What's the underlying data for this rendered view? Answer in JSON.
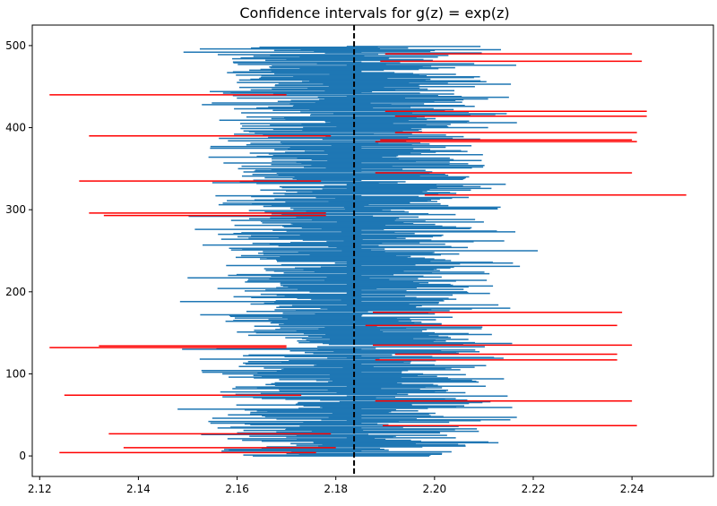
{
  "chart_data": {
    "type": "interval-plot",
    "title": "Confidence intervals for g(z) = exp(z)",
    "xlabel": "",
    "ylabel": "",
    "xlim": [
      2.1185,
      2.2565
    ],
    "ylim": [
      -25,
      525
    ],
    "xticks": [
      2.12,
      2.14,
      2.16,
      2.18,
      2.2,
      2.22,
      2.24
    ],
    "xtick_labels": [
      "2.12",
      "2.14",
      "2.16",
      "2.18",
      "2.20",
      "2.22",
      "2.24"
    ],
    "yticks": [
      0,
      100,
      200,
      300,
      400,
      500
    ],
    "ytick_labels": [
      "0",
      "100",
      "200",
      "300",
      "400",
      "500"
    ],
    "true_value": 2.1837,
    "n_intervals": 500,
    "interval_center_mean": 2.1837,
    "interval_center_sd": 0.0085,
    "interval_halfwidth_mean": 0.0155,
    "interval_halfwidth_sd": 0.0025,
    "covering_color": "#1f77b4",
    "missing_color": "#ff0000",
    "reference_line_color": "#000000",
    "missing_intervals": [
      {
        "index": 4,
        "low": 2.124,
        "high": 2.176
      },
      {
        "index": 10,
        "low": 2.137,
        "high": 2.18
      },
      {
        "index": 27,
        "low": 2.134,
        "high": 2.179
      },
      {
        "index": 37,
        "low": 2.1895,
        "high": 2.241
      },
      {
        "index": 67,
        "low": 2.188,
        "high": 2.24
      },
      {
        "index": 74,
        "low": 2.125,
        "high": 2.173
      },
      {
        "index": 117,
        "low": 2.188,
        "high": 2.237
      },
      {
        "index": 124,
        "low": 2.192,
        "high": 2.237
      },
      {
        "index": 132,
        "low": 2.122,
        "high": 2.17
      },
      {
        "index": 134,
        "low": 2.132,
        "high": 2.17
      },
      {
        "index": 135,
        "low": 2.1875,
        "high": 2.24
      },
      {
        "index": 159,
        "low": 2.186,
        "high": 2.237
      },
      {
        "index": 175,
        "low": 2.1875,
        "high": 2.238
      },
      {
        "index": 293,
        "low": 2.133,
        "high": 2.178
      },
      {
        "index": 296,
        "low": 2.13,
        "high": 2.178
      },
      {
        "index": 318,
        "low": 2.198,
        "high": 2.251
      },
      {
        "index": 335,
        "low": 2.128,
        "high": 2.177
      },
      {
        "index": 345,
        "low": 2.188,
        "high": 2.24
      },
      {
        "index": 383,
        "low": 2.188,
        "high": 2.241
      },
      {
        "index": 385,
        "low": 2.189,
        "high": 2.24
      },
      {
        "index": 390,
        "low": 2.13,
        "high": 2.179
      },
      {
        "index": 394,
        "low": 2.192,
        "high": 2.241
      },
      {
        "index": 414,
        "low": 2.192,
        "high": 2.243
      },
      {
        "index": 420,
        "low": 2.19,
        "high": 2.243
      },
      {
        "index": 440,
        "low": 2.122,
        "high": 2.17
      },
      {
        "index": 481,
        "low": 2.189,
        "high": 2.242
      },
      {
        "index": 490,
        "low": 2.19,
        "high": 2.24
      }
    ]
  }
}
